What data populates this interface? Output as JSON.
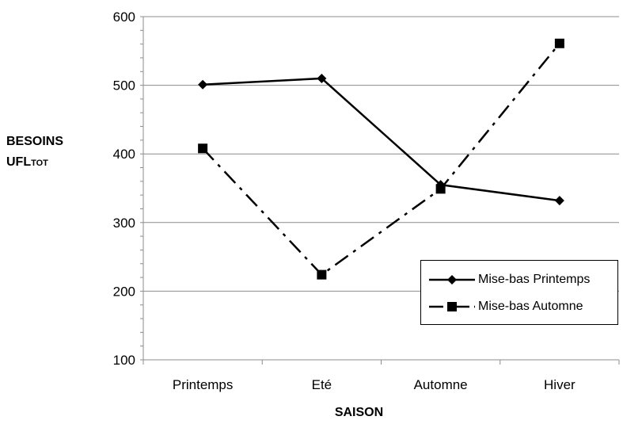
{
  "chart_data": {
    "type": "line",
    "categories": [
      "Printemps",
      "Eté",
      "Automne",
      "Hiver"
    ],
    "series": [
      {
        "name": "Mise-bas Printemps",
        "values": [
          501,
          510,
          355,
          332
        ],
        "marker": "diamond",
        "dash": "solid",
        "color": "#000000"
      },
      {
        "name": "Mise-bas Automne",
        "values": [
          408,
          224,
          349,
          561
        ],
        "marker": "square",
        "dash": "dashdot",
        "color": "#000000"
      }
    ],
    "ylim": [
      100,
      600
    ],
    "yticks": [
      100,
      200,
      300,
      400,
      500,
      600
    ],
    "grid": true,
    "legend_position": "bottom-right",
    "ylabel": "BESOINS",
    "ylabel_line2": "UFL",
    "ylabel_sub": "TOT",
    "xlabel": "SAISON"
  }
}
